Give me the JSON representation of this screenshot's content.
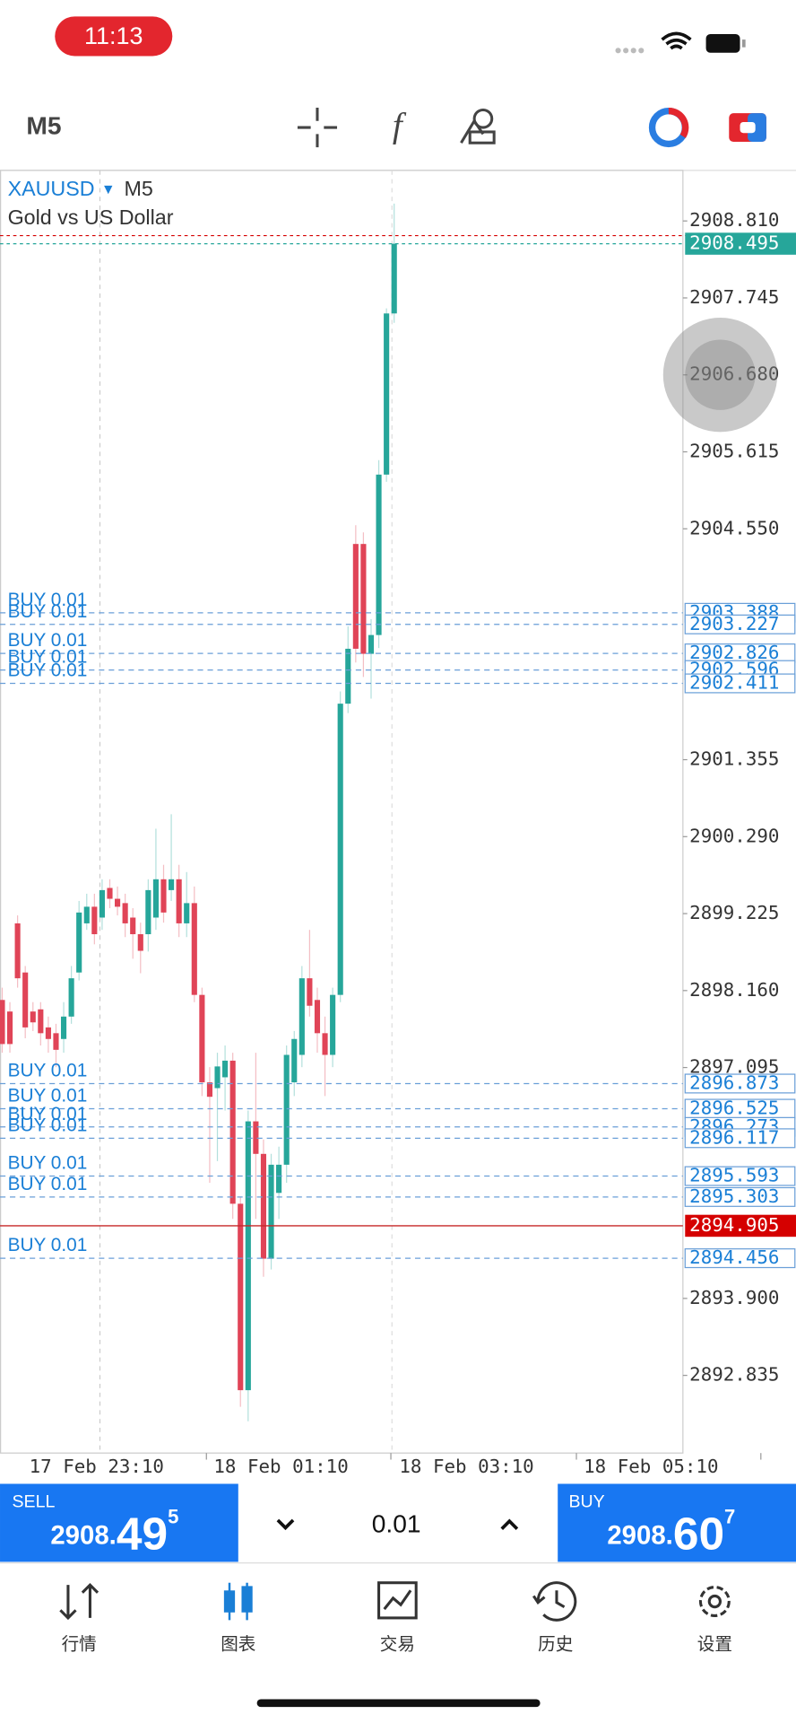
{
  "status_bar": {
    "time": "11:13"
  },
  "toolbar": {
    "timeframe": "M5"
  },
  "chart": {
    "symbol": "XAUUSD",
    "timeframe": "M5",
    "description": "Gold vs US Dollar",
    "ylim": [
      2891.76,
      2909.51
    ],
    "yticks": [
      {
        "value": 2908.81,
        "label": "2908.810"
      },
      2907.745,
      {
        "value": 2906.68,
        "label": "2906.680"
      },
      2905.615,
      {
        "value": 2904.55,
        "label": "2904.550"
      },
      2901.355,
      {
        "value": 2900.29,
        "label": "2900.290"
      },
      2899.225,
      {
        "value": 2898.16,
        "label": "2898.160"
      },
      2897.095,
      {
        "value": 2893.9,
        "label": "2893.900"
      },
      2892.835
    ],
    "xticks": [
      "17 Feb 23:10",
      "18 Feb 01:10",
      "18 Feb 03:10",
      "18 Feb 05:10"
    ],
    "up_color": "#26a69a",
    "down_color": "#e04457",
    "candles": [
      [
        2898.03,
        2898.2,
        2897.3,
        2897.42
      ],
      [
        2897.87,
        2898.0,
        2897.3,
        2897.42
      ],
      [
        2899.09,
        2899.2,
        2898.2,
        2898.33
      ],
      [
        2898.41,
        2898.5,
        2897.5,
        2897.65
      ],
      [
        2897.87,
        2898.0,
        2897.6,
        2897.72
      ],
      [
        2897.9,
        2898.0,
        2897.4,
        2897.57
      ],
      [
        2897.65,
        2897.8,
        2897.3,
        2897.49
      ],
      [
        2897.57,
        2897.7,
        2897.1,
        2897.34
      ],
      [
        2897.49,
        2898.0,
        2897.3,
        2897.8
      ],
      [
        2897.8,
        2898.5,
        2897.7,
        2898.33
      ],
      [
        2898.41,
        2899.4,
        2898.3,
        2899.24
      ],
      [
        2899.09,
        2899.5,
        2899.0,
        2899.32
      ],
      [
        2899.32,
        2899.5,
        2898.8,
        2898.94
      ],
      [
        2899.17,
        2899.7,
        2899.0,
        2899.55
      ],
      [
        2899.58,
        2899.7,
        2899.3,
        2899.43
      ],
      [
        2899.43,
        2899.6,
        2899.2,
        2899.32
      ],
      [
        2899.37,
        2899.5,
        2898.9,
        2899.09
      ],
      [
        2899.17,
        2899.3,
        2898.6,
        2898.94
      ],
      [
        2898.94,
        2899.1,
        2898.4,
        2898.71
      ],
      [
        2898.94,
        2899.7,
        2898.7,
        2899.55
      ],
      [
        2899.17,
        2900.4,
        2899.0,
        2899.7
      ],
      [
        2899.7,
        2899.9,
        2899.1,
        2899.24
      ],
      [
        2899.55,
        2900.6,
        2899.4,
        2899.7
      ],
      [
        2899.7,
        2899.9,
        2898.9,
        2899.09
      ],
      [
        2899.09,
        2899.8,
        2898.9,
        2899.37
      ],
      [
        2899.37,
        2899.6,
        2898.0,
        2898.1
      ],
      [
        2898.1,
        2898.2,
        2896.7,
        2896.89
      ],
      [
        2896.89,
        2897.1,
        2895.5,
        2896.69
      ],
      [
        2896.81,
        2897.3,
        2895.8,
        2897.11
      ],
      [
        2896.96,
        2897.4,
        2896.5,
        2897.19
      ],
      [
        2897.19,
        2897.3,
        2895.0,
        2895.21
      ],
      [
        2895.21,
        2895.3,
        2892.4,
        2892.63
      ],
      [
        2892.63,
        2896.5,
        2892.2,
        2896.35
      ],
      [
        2896.35,
        2897.3,
        2895.0,
        2895.9
      ],
      [
        2895.9,
        2896.1,
        2894.2,
        2894.45
      ],
      [
        2894.45,
        2895.9,
        2894.3,
        2895.75
      ],
      [
        2895.36,
        2896.0,
        2895.0,
        2895.75
      ],
      [
        2895.75,
        2897.4,
        2895.5,
        2897.27
      ],
      [
        2896.89,
        2897.6,
        2896.7,
        2897.49
      ],
      [
        2897.27,
        2898.5,
        2897.1,
        2898.33
      ],
      [
        2898.33,
        2899.0,
        2897.8,
        2897.95
      ],
      [
        2898.03,
        2898.2,
        2897.3,
        2897.57
      ],
      [
        2897.57,
        2897.8,
        2896.7,
        2897.27
      ],
      [
        2897.27,
        2898.2,
        2897.1,
        2898.1
      ],
      [
        2898.1,
        2902.3,
        2898.0,
        2902.13
      ],
      [
        2902.13,
        2903.2,
        2902.0,
        2902.89
      ],
      [
        2904.34,
        2904.6,
        2902.7,
        2902.89
      ],
      [
        2904.34,
        2904.5,
        2902.5,
        2902.82
      ],
      [
        2902.82,
        2903.3,
        2902.2,
        2903.08
      ],
      [
        2903.08,
        2905.5,
        2902.9,
        2905.3
      ],
      [
        2905.3,
        2907.6,
        2905.2,
        2907.53
      ],
      [
        2907.53,
        2909.05,
        2907.4,
        2908.495
      ]
    ],
    "ask": 2908.607,
    "bid": 2908.495,
    "marker_line": 2894.905,
    "orders": [
      {
        "label": "BUY 0.01",
        "price": 2903.388
      },
      {
        "label": "BUY 0.01",
        "price": 2903.227
      },
      {
        "label": "BUY 0.01",
        "price": 2902.826
      },
      {
        "label": "BUY 0.01",
        "price": 2902.596
      },
      {
        "label": "BUY 0.01",
        "price": 2902.411
      },
      {
        "label": "BUY 0.01",
        "price": 2896.873
      },
      {
        "label": "BUY 0.01",
        "price": 2896.525
      },
      {
        "label": "BUY 0.01",
        "price": 2896.273
      },
      {
        "label": "BUY 0.01",
        "price": 2896.117
      },
      {
        "label": "BUY 0.01",
        "price": 2895.593
      },
      {
        "label": "BUY 0.01",
        "price": 2895.303
      },
      {
        "label": "BUY 0.01",
        "price": 2894.456
      }
    ]
  },
  "trade_bar": {
    "sell": {
      "label": "SELL",
      "head": "2908.",
      "big": "49",
      "tail": "5"
    },
    "lot": "0.01",
    "buy": {
      "label": "BUY",
      "head": "2908.",
      "big": "60",
      "tail": "7"
    }
  },
  "tabs": [
    {
      "label": "行情"
    },
    {
      "label": "图表"
    },
    {
      "label": "交易"
    },
    {
      "label": "历史"
    },
    {
      "label": "设置"
    }
  ]
}
